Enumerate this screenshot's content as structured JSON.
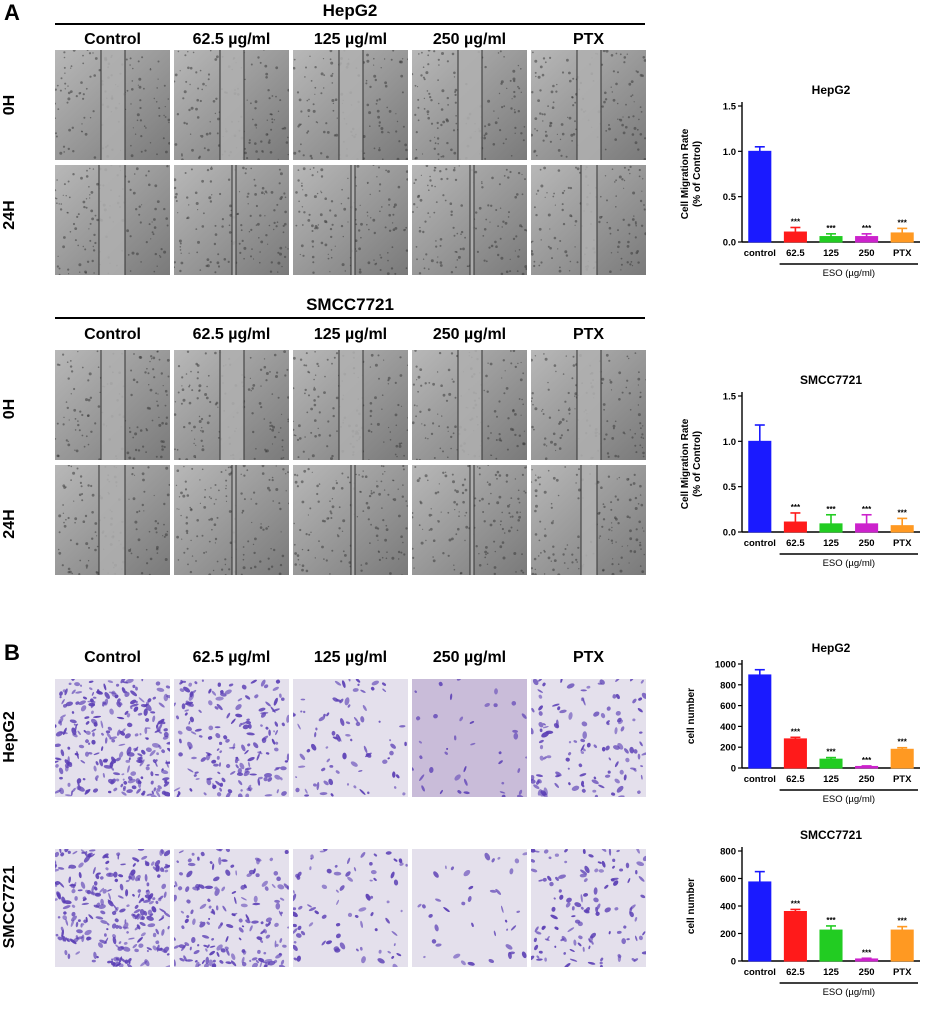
{
  "panels": {
    "a": "A",
    "b": "B"
  },
  "section_a": {
    "blocks": [
      {
        "title": "HepG2",
        "columns": [
          "Control",
          "62.5 µg/ml",
          "125 µg/ml",
          "250 µg/ml",
          "PTX"
        ],
        "rows": [
          "0H",
          "24H"
        ]
      },
      {
        "title": "SMCC7721",
        "columns": [
          "Control",
          "62.5 µg/ml",
          "125 µg/ml",
          "250 µg/ml",
          "PTX"
        ],
        "rows": [
          "0H",
          "24H"
        ]
      }
    ]
  },
  "section_b": {
    "columns": [
      "Control",
      "62.5 µg/ml",
      "125 µg/ml",
      "250 µg/ml",
      "PTX"
    ],
    "rows": [
      "HepG2",
      "SMCC7721"
    ]
  },
  "colors": {
    "control": "#1a1aff",
    "d62": "#ff1a1a",
    "d125": "#22cc22",
    "d250": "#cc22cc",
    "ptx": "#ff9922",
    "stain_dark": "#5b3fb5",
    "stain_light": "#e4e0ec",
    "wound_bg": "#a8a8a8"
  },
  "chart_data": [
    {
      "type": "bar",
      "title": "HepG2",
      "ylabel": "Cell Migration Rate\n(% of Control)",
      "categories": [
        "control",
        "62.5",
        "125",
        "250",
        "PTX"
      ],
      "values": [
        1.0,
        0.11,
        0.06,
        0.06,
        0.1
      ],
      "errors": [
        0.05,
        0.05,
        0.03,
        0.03,
        0.05
      ],
      "significance": [
        "",
        "***",
        "***",
        "***",
        "***"
      ],
      "yticks": [
        0.0,
        0.5,
        1.0,
        1.5
      ],
      "ylim": [
        0,
        1.5
      ],
      "tick_format": "1dp",
      "group_label": "ESO (µg/ml)"
    },
    {
      "type": "bar",
      "title": "SMCC7721",
      "ylabel": "Cell Migration Rate\n(% of Control)",
      "categories": [
        "control",
        "62.5",
        "125",
        "250",
        "PTX"
      ],
      "values": [
        1.0,
        0.11,
        0.09,
        0.09,
        0.07
      ],
      "errors": [
        0.18,
        0.1,
        0.1,
        0.1,
        0.08
      ],
      "significance": [
        "",
        "***",
        "***",
        "***",
        "***"
      ],
      "yticks": [
        0.0,
        0.5,
        1.0,
        1.5
      ],
      "ylim": [
        0,
        1.5
      ],
      "tick_format": "1dp",
      "group_label": "ESO (µg/ml)"
    },
    {
      "type": "bar",
      "title": "HepG2",
      "ylabel": "cell number",
      "categories": [
        "control",
        "62.5",
        "125",
        "250",
        "PTX"
      ],
      "values": [
        895,
        280,
        85,
        15,
        180
      ],
      "errors": [
        50,
        15,
        15,
        5,
        15
      ],
      "significance": [
        "",
        "***",
        "***",
        "***",
        "***"
      ],
      "yticks": [
        0,
        200,
        400,
        600,
        800,
        1000
      ],
      "ylim": [
        0,
        1000
      ],
      "tick_format": "int",
      "group_label": "ESO (µg/ml)"
    },
    {
      "type": "bar",
      "title": "SMCC7721",
      "ylabel": "cell number",
      "categories": [
        "control",
        "62.5",
        "125",
        "250",
        "PTX"
      ],
      "values": [
        575,
        360,
        225,
        15,
        225
      ],
      "errors": [
        75,
        15,
        30,
        5,
        25
      ],
      "significance": [
        "",
        "***",
        "***",
        "***",
        "***"
      ],
      "yticks": [
        0,
        200,
        400,
        600,
        800
      ],
      "ylim": [
        0,
        800
      ],
      "tick_format": "int",
      "group_label": "ESO (µg/ml)"
    }
  ]
}
